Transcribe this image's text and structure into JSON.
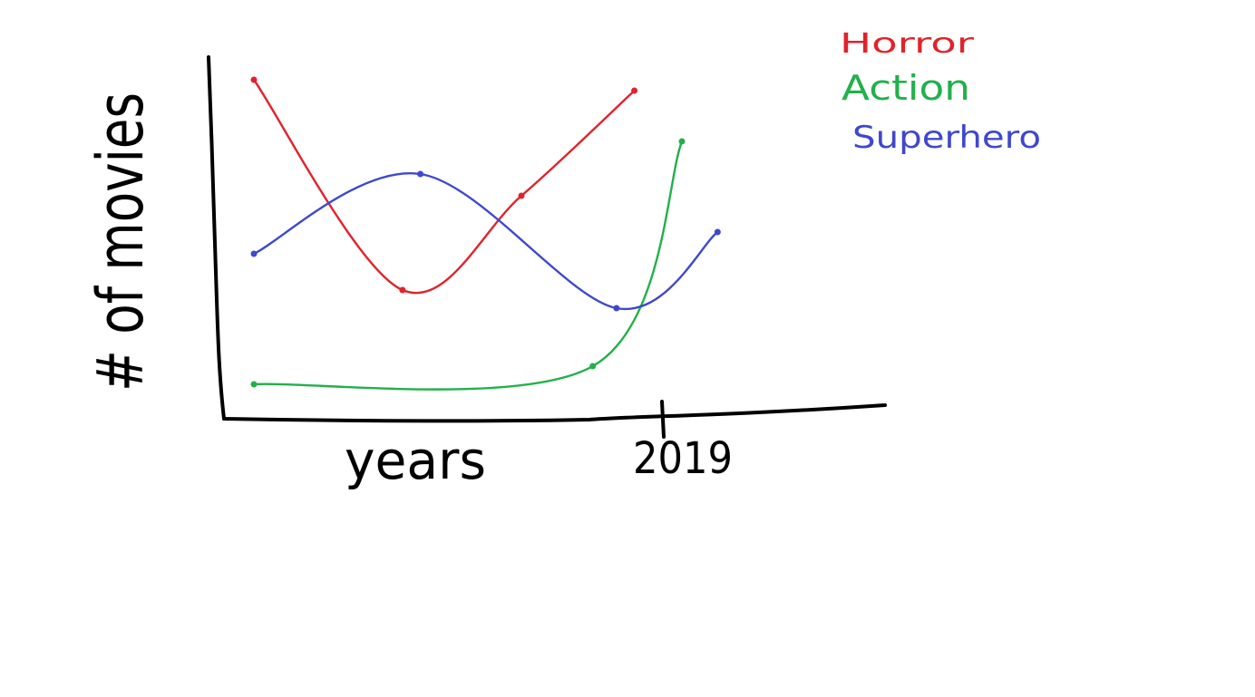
{
  "chart_data": {
    "type": "line",
    "title": "",
    "xlabel": "years",
    "ylabel": "# of movies",
    "x_tick_labels": [
      "2019"
    ],
    "x": [
      0,
      1,
      2,
      3,
      4,
      5,
      6,
      7,
      8,
      9
    ],
    "ylim": [
      0,
      10
    ],
    "grid": false,
    "legend_position": "top-right",
    "series": [
      {
        "name": "Horror",
        "color": "#e0232b",
        "x": [
          0,
          2.5,
          4.5,
          6.4
        ],
        "values": [
          9.3,
          3.5,
          6.1,
          9.0
        ]
      },
      {
        "name": "Action",
        "color": "#22b04a",
        "x": [
          0,
          5.7,
          7.2
        ],
        "values": [
          0.9,
          1.4,
          7.6
        ]
      },
      {
        "name": "Superhero",
        "color": "#3f48cc",
        "x": [
          0,
          2.8,
          6.1,
          7.8
        ],
        "values": [
          4.5,
          6.7,
          3.0,
          5.1
        ]
      }
    ]
  }
}
